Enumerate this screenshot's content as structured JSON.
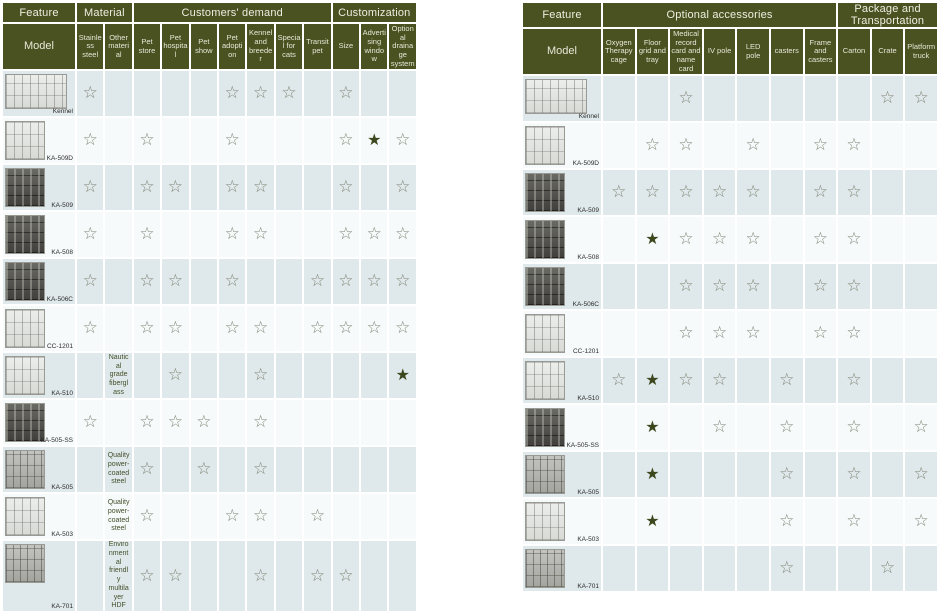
{
  "icons": {
    "star_open": "☆",
    "star_filled": "★",
    "star_open_name": "star-outline-icon",
    "star_filled_name": "star-filled-icon"
  },
  "colors": {
    "header_bg": "#4a5222",
    "header_text": "#efeee0",
    "row_tint": "#dfe8ea",
    "row_alt": "#f7fafa",
    "star_open": "#84897a",
    "star_filled": "#3d471d"
  },
  "tables": [
    {
      "name": "features-demand-customization",
      "feature_label": "Feature",
      "model_label": "Model",
      "groups": [
        {
          "label": "Material",
          "span": 2
        },
        {
          "label": "Customers' demand",
          "span": 7
        },
        {
          "label": "Customization",
          "span": 3
        }
      ],
      "columns": [
        "Stainless steel",
        "Other material",
        "Pet store",
        "Pet hospital",
        "Pet show",
        "Pet adoption",
        "Kennel and breeder",
        "Special for cats",
        "Transit pet",
        "Size",
        "Advertising window",
        "Optional drainage system"
      ],
      "rows": [
        {
          "model": "Kennel",
          "thumb": {
            "tone": "light",
            "shape": "wide"
          },
          "cells": [
            "☆",
            "",
            "",
            "",
            "",
            "☆",
            "☆",
            "☆",
            "",
            "☆",
            "",
            ""
          ]
        },
        {
          "model": "KA-509D",
          "thumb": {
            "tone": "light",
            "shape": "square"
          },
          "cells": [
            "☆",
            "",
            "☆",
            "",
            "",
            "☆",
            "",
            "",
            "",
            "☆",
            "★",
            "☆"
          ]
        },
        {
          "model": "KA-509",
          "thumb": {
            "tone": "dark",
            "shape": "square"
          },
          "cells": [
            "☆",
            "",
            "☆",
            "☆",
            "",
            "☆",
            "☆",
            "",
            "",
            "☆",
            "",
            "☆"
          ]
        },
        {
          "model": "KA-508",
          "thumb": {
            "tone": "dark",
            "shape": "square"
          },
          "cells": [
            "☆",
            "",
            "☆",
            "",
            "",
            "☆",
            "☆",
            "",
            "",
            "☆",
            "☆",
            "☆"
          ]
        },
        {
          "model": "KA-506C",
          "thumb": {
            "tone": "dark",
            "shape": "square"
          },
          "cells": [
            "☆",
            "",
            "☆",
            "☆",
            "",
            "☆",
            "",
            "",
            "☆",
            "☆",
            "☆",
            "☆"
          ]
        },
        {
          "model": "CC-1201",
          "thumb": {
            "tone": "light",
            "shape": "square"
          },
          "cells": [
            "☆",
            "",
            "☆",
            "☆",
            "",
            "☆",
            "☆",
            "",
            "☆",
            "☆",
            "☆",
            "☆"
          ]
        },
        {
          "model": "KA-510",
          "thumb": {
            "tone": "light",
            "shape": "square"
          },
          "cells": [
            "",
            "Nautical grade fiberglass",
            "",
            "☆",
            "",
            "",
            "☆",
            "",
            "",
            "",
            "",
            "★"
          ]
        },
        {
          "model": "KA-505-SS",
          "thumb": {
            "tone": "dark",
            "shape": "square"
          },
          "cells": [
            "☆",
            "",
            "☆",
            "☆",
            "☆",
            "",
            "☆",
            "",
            "",
            "",
            "",
            ""
          ]
        },
        {
          "model": "KA-505",
          "thumb": {
            "tone": "medium",
            "shape": "square"
          },
          "cells": [
            "",
            "Quality power-coated steel",
            "☆",
            "",
            "☆",
            "",
            "☆",
            "",
            "",
            "",
            "",
            ""
          ]
        },
        {
          "model": "KA-503",
          "thumb": {
            "tone": "light",
            "shape": "square"
          },
          "cells": [
            "",
            "Quality power-coated steel",
            "☆",
            "",
            "",
            "☆",
            "☆",
            "",
            "☆",
            "",
            "",
            ""
          ]
        },
        {
          "model": "KA-701",
          "thumb": {
            "tone": "medium",
            "shape": "square"
          },
          "cells": [
            "",
            "Environmental friendly multilayer HDF",
            "☆",
            "☆",
            "",
            "",
            "☆",
            "",
            "☆",
            "☆",
            "",
            ""
          ]
        }
      ]
    },
    {
      "name": "accessories-package-transportation",
      "feature_label": "Feature",
      "model_label": "Model",
      "groups": [
        {
          "label": "Optional accessories",
          "span": 7
        },
        {
          "label": "Package and Transportation",
          "span": 3
        }
      ],
      "columns": [
        "Oxygen Therapy cage",
        "Floor grid and tray",
        "Medical record card and name card",
        "IV pole",
        "LED pole",
        "casters",
        "Frame and casters",
        "Carton",
        "Crate",
        "Platform truck"
      ],
      "rows": [
        {
          "model": "Kennel",
          "thumb": {
            "tone": "light",
            "shape": "wide"
          },
          "cells": [
            "",
            "",
            "☆",
            "",
            "",
            "",
            "",
            "",
            "☆",
            "☆"
          ]
        },
        {
          "model": "KA-509D",
          "thumb": {
            "tone": "light",
            "shape": "square"
          },
          "cells": [
            "",
            "☆",
            "☆",
            "",
            "☆",
            "",
            "☆",
            "☆",
            "",
            ""
          ]
        },
        {
          "model": "KA-509",
          "thumb": {
            "tone": "dark",
            "shape": "square"
          },
          "cells": [
            "☆",
            "☆",
            "☆",
            "☆",
            "☆",
            "",
            "☆",
            "☆",
            "",
            ""
          ]
        },
        {
          "model": "KA-508",
          "thumb": {
            "tone": "dark",
            "shape": "square"
          },
          "cells": [
            "",
            "★",
            "☆",
            "☆",
            "☆",
            "",
            "☆",
            "☆",
            "",
            ""
          ]
        },
        {
          "model": "KA-506C",
          "thumb": {
            "tone": "dark",
            "shape": "square"
          },
          "cells": [
            "",
            "",
            "☆",
            "☆",
            "☆",
            "",
            "☆",
            "☆",
            "",
            ""
          ]
        },
        {
          "model": "CC-1201",
          "thumb": {
            "tone": "light",
            "shape": "square"
          },
          "cells": [
            "",
            "",
            "☆",
            "☆",
            "☆",
            "",
            "☆",
            "☆",
            "",
            ""
          ]
        },
        {
          "model": "KA-510",
          "thumb": {
            "tone": "light",
            "shape": "square"
          },
          "cells": [
            "☆",
            "★",
            "☆",
            "☆",
            "",
            "☆",
            "",
            "☆",
            "",
            ""
          ]
        },
        {
          "model": "KA-505-SS",
          "thumb": {
            "tone": "dark",
            "shape": "square"
          },
          "cells": [
            "",
            "★",
            "",
            "☆",
            "",
            "☆",
            "",
            "☆",
            "",
            "☆"
          ]
        },
        {
          "model": "KA-505",
          "thumb": {
            "tone": "medium",
            "shape": "square"
          },
          "cells": [
            "",
            "★",
            "",
            "",
            "",
            "☆",
            "",
            "☆",
            "",
            "☆"
          ]
        },
        {
          "model": "KA-503",
          "thumb": {
            "tone": "light",
            "shape": "square"
          },
          "cells": [
            "",
            "★",
            "",
            "",
            "",
            "☆",
            "",
            "☆",
            "",
            "☆"
          ]
        },
        {
          "model": "KA-701",
          "thumb": {
            "tone": "medium",
            "shape": "square"
          },
          "cells": [
            "",
            "",
            "",
            "",
            "",
            "☆",
            "",
            "",
            "☆",
            ""
          ]
        }
      ]
    }
  ]
}
